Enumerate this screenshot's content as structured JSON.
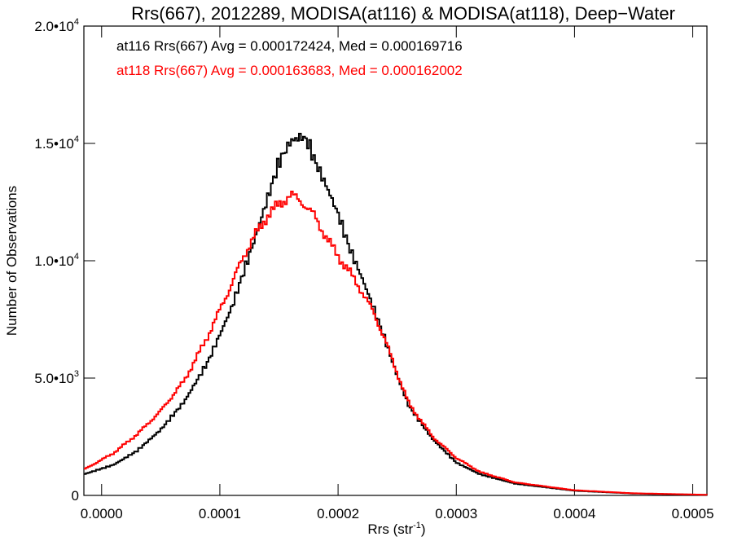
{
  "chart_data": {
    "type": "histogram-step",
    "title": "Rrs(667), 2012289, MODISA(at116) & MODISA(at118), Deep−Water",
    "xlabel": "Rrs (str",
    "xlabel_sup": "-1",
    "xlabel_close": ")",
    "ylabel": "Number of Observations",
    "xlim": [
      -1.5e-05,
      0.000512
    ],
    "ylim": [
      0,
      20000
    ],
    "x_ticks": [
      {
        "value": 0.0,
        "label": "0.0000"
      },
      {
        "value": 0.0001,
        "label": "0.0001"
      },
      {
        "value": 0.0002,
        "label": "0.0002"
      },
      {
        "value": 0.0003,
        "label": "0.0003"
      },
      {
        "value": 0.0004,
        "label": "0.0004"
      },
      {
        "value": 0.0005,
        "label": "0.0005"
      }
    ],
    "y_ticks": [
      {
        "value": 0,
        "label": "0",
        "sup": ""
      },
      {
        "value": 5000,
        "label": "5.0•10",
        "sup": "3"
      },
      {
        "value": 10000,
        "label": "1.0•10",
        "sup": "4"
      },
      {
        "value": 15000,
        "label": "1.5•10",
        "sup": "4"
      },
      {
        "value": 20000,
        "label": "2.0•10",
        "sup": "4"
      }
    ],
    "grid": false,
    "series": [
      {
        "name": "at116",
        "color": "#000000",
        "stat_text": "at116 Rrs(667) Avg = 0.000172424, Med = 0.000169716",
        "points": [
          [
            -1.5e-05,
            900
          ],
          [
            1e-05,
            1300
          ],
          [
            3e-05,
            1900
          ],
          [
            5e-05,
            2800
          ],
          [
            7e-05,
            4000
          ],
          [
            9e-05,
            5700
          ],
          [
            0.00011,
            8000
          ],
          [
            0.00013,
            11000
          ],
          [
            0.00014,
            12600
          ],
          [
            0.00015,
            14200
          ],
          [
            0.00016,
            15100
          ],
          [
            0.000165,
            15200
          ],
          [
            0.00017,
            15300
          ],
          [
            0.000175,
            15000
          ],
          [
            0.00018,
            14300
          ],
          [
            0.00019,
            13200
          ],
          [
            0.0002,
            12000
          ],
          [
            0.00021,
            10500
          ],
          [
            0.00022,
            9300
          ],
          [
            0.00023,
            8000
          ],
          [
            0.00024,
            6600
          ],
          [
            0.00025,
            5100
          ],
          [
            0.00026,
            3800
          ],
          [
            0.00028,
            2400
          ],
          [
            0.0003,
            1400
          ],
          [
            0.00032,
            900
          ],
          [
            0.00035,
            500
          ],
          [
            0.0004,
            200
          ],
          [
            0.00045,
            80
          ],
          [
            0.000512,
            20
          ]
        ]
      },
      {
        "name": "at118",
        "color": "#ff0000",
        "stat_text": "at118 Rrs(667) Avg = 0.000163683, Med = 0.000162002",
        "points": [
          [
            -1.5e-05,
            1100
          ],
          [
            1e-05,
            1800
          ],
          [
            3e-05,
            2600
          ],
          [
            5e-05,
            3600
          ],
          [
            7e-05,
            4900
          ],
          [
            9e-05,
            6800
          ],
          [
            0.00011,
            9000
          ],
          [
            0.00012,
            10200
          ],
          [
            0.00013,
            11100
          ],
          [
            0.00014,
            11900
          ],
          [
            0.00015,
            12400
          ],
          [
            0.00016,
            12800
          ],
          [
            0.00017,
            12500
          ],
          [
            0.00018,
            11900
          ],
          [
            0.00019,
            11000
          ],
          [
            0.0002,
            10200
          ],
          [
            0.00021,
            9500
          ],
          [
            0.00022,
            8700
          ],
          [
            0.00023,
            7800
          ],
          [
            0.00024,
            6600
          ],
          [
            0.00025,
            5200
          ],
          [
            0.00026,
            3900
          ],
          [
            0.00028,
            2500
          ],
          [
            0.0003,
            1600
          ],
          [
            0.00032,
            1000
          ],
          [
            0.00035,
            550
          ],
          [
            0.0004,
            220
          ],
          [
            0.00045,
            90
          ],
          [
            0.000512,
            25
          ]
        ]
      }
    ]
  }
}
